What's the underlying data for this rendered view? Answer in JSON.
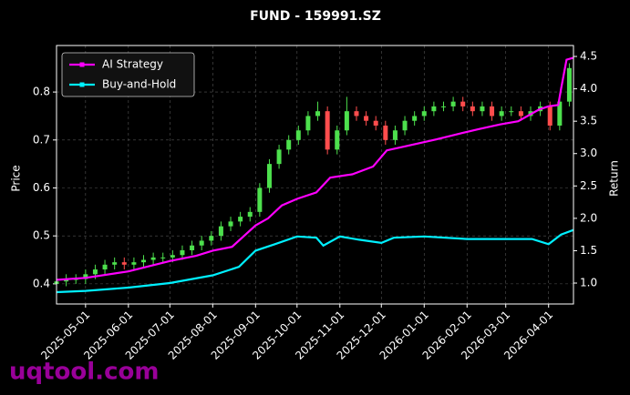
{
  "chart_data": {
    "type": "candlestick",
    "title": "FUND - 159991.SZ",
    "ylabel": "Price",
    "y2label": "Return",
    "watermark": "uqtool.com",
    "x": [
      "2025-04-10",
      "2025-04-17",
      "2025-04-24",
      "2025-05-01",
      "2025-05-08",
      "2025-05-15",
      "2025-05-22",
      "2025-05-29",
      "2025-06-05",
      "2025-06-12",
      "2025-06-19",
      "2025-06-26",
      "2025-07-03",
      "2025-07-10",
      "2025-07-17",
      "2025-07-24",
      "2025-07-31",
      "2025-08-07",
      "2025-08-14",
      "2025-08-21",
      "2025-08-28",
      "2025-09-04",
      "2025-09-11",
      "2025-09-18",
      "2025-09-25",
      "2025-10-02",
      "2025-10-09",
      "2025-10-16",
      "2025-10-23",
      "2025-10-30",
      "2025-11-06",
      "2025-11-13",
      "2025-11-20",
      "2025-11-27",
      "2025-12-04",
      "2025-12-11",
      "2025-12-18",
      "2025-12-25",
      "2026-01-01",
      "2026-01-08",
      "2026-01-15",
      "2026-01-22",
      "2026-01-29",
      "2026-02-05",
      "2026-02-12",
      "2026-02-19",
      "2026-02-26",
      "2026-03-05",
      "2026-03-12",
      "2026-03-19",
      "2026-03-26",
      "2026-04-02",
      "2026-04-09",
      "2026-04-16"
    ],
    "open": [
      0.4,
      0.405,
      0.41,
      0.41,
      0.42,
      0.43,
      0.44,
      0.445,
      0.44,
      0.445,
      0.45,
      0.455,
      0.455,
      0.46,
      0.47,
      0.48,
      0.49,
      0.5,
      0.52,
      0.53,
      0.54,
      0.55,
      0.6,
      0.65,
      0.68,
      0.7,
      0.72,
      0.75,
      0.76,
      0.68,
      0.72,
      0.76,
      0.75,
      0.74,
      0.73,
      0.7,
      0.72,
      0.74,
      0.75,
      0.76,
      0.77,
      0.77,
      0.78,
      0.77,
      0.76,
      0.77,
      0.75,
      0.76,
      0.76,
      0.75,
      0.76,
      0.77,
      0.73,
      0.78
    ],
    "high": [
      0.415,
      0.42,
      0.42,
      0.43,
      0.44,
      0.45,
      0.455,
      0.455,
      0.455,
      0.46,
      0.465,
      0.465,
      0.47,
      0.48,
      0.49,
      0.5,
      0.51,
      0.53,
      0.54,
      0.55,
      0.56,
      0.61,
      0.66,
      0.69,
      0.71,
      0.73,
      0.76,
      0.78,
      0.77,
      0.73,
      0.79,
      0.77,
      0.76,
      0.75,
      0.74,
      0.73,
      0.75,
      0.76,
      0.77,
      0.78,
      0.78,
      0.79,
      0.79,
      0.78,
      0.78,
      0.78,
      0.77,
      0.77,
      0.77,
      0.77,
      0.78,
      0.78,
      0.79,
      0.86
    ],
    "low": [
      0.39,
      0.395,
      0.4,
      0.4,
      0.41,
      0.42,
      0.43,
      0.43,
      0.43,
      0.435,
      0.44,
      0.445,
      0.445,
      0.45,
      0.46,
      0.47,
      0.48,
      0.49,
      0.51,
      0.52,
      0.53,
      0.54,
      0.59,
      0.64,
      0.67,
      0.69,
      0.71,
      0.74,
      0.67,
      0.67,
      0.71,
      0.74,
      0.73,
      0.72,
      0.69,
      0.69,
      0.71,
      0.73,
      0.74,
      0.75,
      0.76,
      0.76,
      0.76,
      0.75,
      0.75,
      0.74,
      0.74,
      0.75,
      0.74,
      0.74,
      0.75,
      0.72,
      0.72,
      0.77
    ],
    "close": [
      0.405,
      0.41,
      0.41,
      0.42,
      0.43,
      0.44,
      0.445,
      0.44,
      0.445,
      0.45,
      0.455,
      0.455,
      0.46,
      0.47,
      0.48,
      0.49,
      0.5,
      0.52,
      0.53,
      0.54,
      0.55,
      0.6,
      0.65,
      0.68,
      0.7,
      0.72,
      0.75,
      0.76,
      0.68,
      0.72,
      0.76,
      0.75,
      0.74,
      0.73,
      0.7,
      0.72,
      0.74,
      0.75,
      0.76,
      0.77,
      0.77,
      0.78,
      0.77,
      0.76,
      0.77,
      0.75,
      0.76,
      0.76,
      0.75,
      0.76,
      0.77,
      0.73,
      0.78,
      0.85
    ],
    "up_color": "#4de04d",
    "down_color": "#ff4d4d",
    "series": [
      {
        "name": "AI Strategy",
        "color": "#ff00ff",
        "axis": "y2",
        "x": [
          "2025-04-10",
          "2025-05-01",
          "2025-06-01",
          "2025-07-01",
          "2025-07-20",
          "2025-08-01",
          "2025-08-15",
          "2025-09-01",
          "2025-09-10",
          "2025-09-20",
          "2025-10-01",
          "2025-10-15",
          "2025-10-25",
          "2025-11-10",
          "2025-11-25",
          "2025-12-05",
          "2025-12-20",
          "2026-01-10",
          "2026-01-25",
          "2026-02-10",
          "2026-02-25",
          "2026-03-10",
          "2026-03-25",
          "2026-04-01",
          "2026-04-08",
          "2026-04-10",
          "2026-04-14",
          "2026-04-19"
        ],
        "values": [
          1.05,
          1.08,
          1.18,
          1.34,
          1.42,
          1.5,
          1.56,
          1.89,
          2.0,
          2.2,
          2.3,
          2.4,
          2.63,
          2.68,
          2.8,
          3.05,
          3.12,
          3.22,
          3.3,
          3.38,
          3.45,
          3.5,
          3.68,
          3.73,
          3.75,
          4.0,
          4.45,
          4.48
        ]
      },
      {
        "name": "Buy-and-Hold",
        "color": "#00f0ff",
        "axis": "y2",
        "x": [
          "2025-04-10",
          "2025-05-01",
          "2025-06-01",
          "2025-07-01",
          "2025-08-01",
          "2025-08-20",
          "2025-09-01",
          "2025-09-15",
          "2025-10-01",
          "2025-10-15",
          "2025-10-20",
          "2025-11-01",
          "2025-11-15",
          "2025-12-01",
          "2025-12-10",
          "2026-01-01",
          "2026-02-01",
          "2026-03-01",
          "2026-03-20",
          "2026-04-01",
          "2026-04-10",
          "2026-04-19"
        ],
        "values": [
          0.86,
          0.88,
          0.93,
          1.0,
          1.12,
          1.25,
          1.5,
          1.6,
          1.72,
          1.7,
          1.58,
          1.72,
          1.67,
          1.62,
          1.7,
          1.72,
          1.68,
          1.68,
          1.68,
          1.6,
          1.75,
          1.82
        ]
      }
    ],
    "xlim": [
      "2025-04-10",
      "2026-04-19"
    ],
    "xticks": [
      "2025-05-01",
      "2025-06-01",
      "2025-07-01",
      "2025-08-01",
      "2025-09-01",
      "2025-10-01",
      "2025-11-01",
      "2025-12-01",
      "2026-01-01",
      "2026-02-01",
      "2026-03-01",
      "2026-04-01"
    ],
    "ylim": [
      0.358,
      0.897
    ],
    "yticks": [
      0.4,
      0.5,
      0.6,
      0.7,
      0.8
    ],
    "y2lim": [
      0.677,
      4.669
    ],
    "y2ticks": [
      {
        "value": 1,
        "label": "1.0"
      },
      1.5,
      {
        "value": 2,
        "label": "2.0"
      },
      2.5,
      {
        "value": 3,
        "label": "3.0"
      },
      3.5,
      {
        "value": 4,
        "label": "4.0"
      },
      4.5
    ],
    "grid": true,
    "legend": "upper left"
  }
}
